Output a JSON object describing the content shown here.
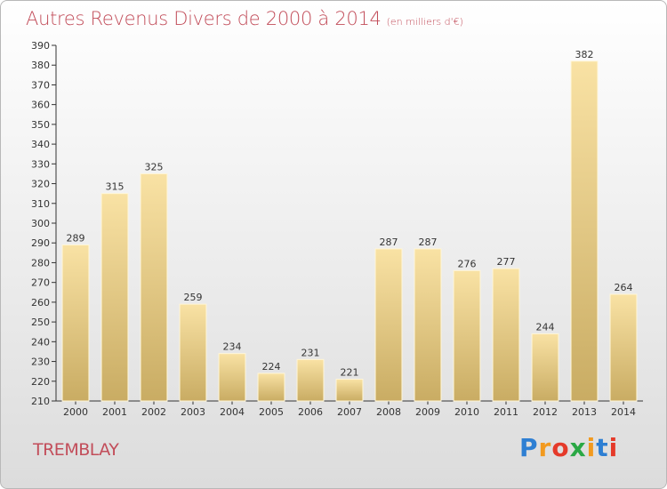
{
  "title": "Autres Revenus Divers de 2000 à 2014",
  "subtitle": "(en milliers d'€)",
  "city": "TREMBLAY",
  "logo": {
    "letters": [
      "P",
      "r",
      "o",
      "x",
      "i",
      "t",
      "i"
    ],
    "colors": [
      "#2e7fd3",
      "#f29a1f",
      "#e53a2a",
      "#2aa845",
      "#f29a1f",
      "#2e7fd3",
      "#e53a2a"
    ]
  },
  "colors": {
    "bar_light": "#f9e2a4",
    "bar_dark": "#c9ac63",
    "title": "#c24d5a"
  },
  "chart_data": {
    "type": "bar",
    "title": "Autres Revenus Divers de 2000 à 2014",
    "categories": [
      "2000",
      "2001",
      "2002",
      "2003",
      "2004",
      "2005",
      "2006",
      "2007",
      "2008",
      "2009",
      "2010",
      "2011",
      "2012",
      "2013",
      "2014"
    ],
    "values": [
      289,
      315,
      325,
      259,
      234,
      224,
      231,
      221,
      287,
      287,
      276,
      277,
      244,
      382,
      264
    ],
    "ylim": [
      210,
      390
    ],
    "yticks": [
      210,
      220,
      230,
      240,
      250,
      260,
      270,
      280,
      290,
      300,
      310,
      320,
      330,
      340,
      350,
      360,
      370,
      380,
      390
    ],
    "grid": false,
    "data_labels": true
  }
}
